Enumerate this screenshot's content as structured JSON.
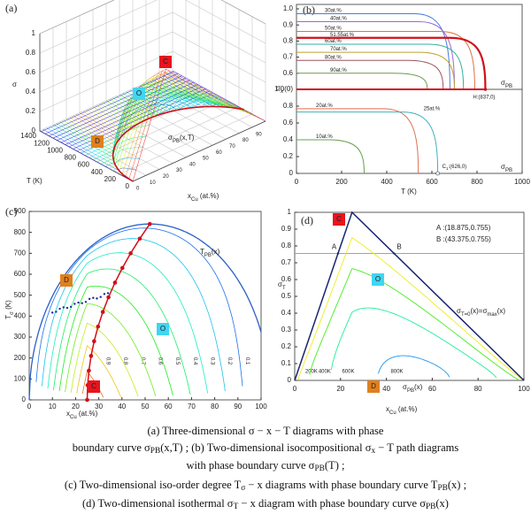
{
  "figure": {
    "panels": [
      {
        "type": "surface3d",
        "label": "(a)",
        "zlabel": "σ",
        "ylabel": "T  (K)",
        "xlabel": [
          "x",
          "Cu",
          "  (at.%)"
        ],
        "zlim": [
          0,
          1
        ],
        "zticks": [
          0,
          0.2,
          0.4,
          0.6,
          0.8,
          1
        ],
        "ylim": [
          0,
          1400
        ],
        "yticks": [
          0,
          200,
          400,
          600,
          800,
          1000,
          1200,
          1400
        ],
        "xlim": [
          0,
          100
        ],
        "xticks": [
          0,
          10,
          20,
          30,
          40,
          50,
          60,
          70,
          80,
          90
        ],
        "curve_label": [
          "σ",
          "PB",
          "(x,T)"
        ],
        "curve_color": "#d0101a",
        "markers": [
          {
            "text": "C",
            "color": "#e8141e"
          },
          {
            "text": "O",
            "color": "#3fd6f2"
          },
          {
            "text": "D",
            "color": "#e0801e"
          }
        ]
      },
      {
        "type": "isocomposition",
        "label": "(b)",
        "xlabel": "T  (K)",
        "ylabel": [
          "σ",
          "x"
        ],
        "xlim": [
          0,
          1000
        ],
        "xticks": [
          0,
          200,
          400,
          600,
          800,
          1000
        ],
        "ylim_upper": [
          0.5,
          1
        ],
        "yticks_upper": [
          {
            "value": 1,
            "label": "1.0"
          },
          0.9,
          0.8,
          0.7,
          0.6
        ],
        "ylim": [
          0,
          1
        ],
        "yticks": [
          0,
          0.2,
          0.4,
          0.6,
          0.8,
          {
            "value": 1,
            "label": "1.0(0)"
          }
        ],
        "curves": [
          {
            "name": "30at.%",
            "color": "#4a7be0",
            "start_sigma": 0.97,
            "end_T": 680,
            "line_width": 1
          },
          {
            "name": "40at.%",
            "color": "#9a6ad0",
            "start_sigma": 0.92,
            "end_T": 700,
            "line_width": 1
          },
          {
            "name": "50at.%",
            "color": "#e07040",
            "start_sigma": 0.86,
            "end_T": 790,
            "line_width": 1
          },
          {
            "name": "51.55at.%",
            "color": "#d0101a",
            "start_sigma": 0.82,
            "end_T": 837,
            "line_width": 2.2
          },
          {
            "name": "60at.%",
            "color": "#30b0a0",
            "start_sigma": 0.78,
            "end_T": 740,
            "line_width": 1
          },
          {
            "name": "70at.%",
            "color": "#c0a030",
            "start_sigma": 0.73,
            "end_T": 700,
            "line_width": 1
          },
          {
            "name": "80at.%",
            "color": "#a05060",
            "start_sigma": 0.68,
            "end_T": 650,
            "line_width": 1
          },
          {
            "name": "90at.%",
            "color": "#6a9a50",
            "start_sigma": 0.6,
            "end_T": 580,
            "line_width": 1
          }
        ],
        "lower_curves": [
          {
            "name": "20at.%",
            "color": "#e07050",
            "start_sigma": 0.77,
            "end_T": 540,
            "line_width": 1
          },
          {
            "name": "25at.%",
            "color": "#40b0c0",
            "start_sigma": 0.73,
            "end_T": 626,
            "line_width": 1
          },
          {
            "name": "10at.%",
            "color": "#6aa050",
            "start_sigma": 0.4,
            "end_T": 300,
            "line_width": 1
          }
        ],
        "point_h": {
          "label": "H:(837,0)",
          "T": 837,
          "color": "#d0101a"
        },
        "point_c1": {
          "label": [
            "C",
            "1",
            ":(626,0)"
          ],
          "T": 626
        },
        "upper_label": [
          "σ",
          "PB"
        ],
        "lower_label": [
          "σ",
          "PB"
        ]
      },
      {
        "type": "isoorder",
        "label": "(c)",
        "xlabel": [
          "x",
          "Cu",
          "  (at.%)"
        ],
        "ylabel": [
          "T",
          "σ",
          "  (K)"
        ],
        "xlim": [
          0,
          100
        ],
        "xticks": [
          0,
          10,
          20,
          30,
          40,
          50,
          60,
          70,
          80,
          90,
          100
        ],
        "ylim": [
          0,
          900
        ],
        "yticks": [
          0,
          100,
          200,
          300,
          400,
          500,
          600,
          700,
          800,
          900
        ],
        "contours": [
          0.9,
          0.8,
          0.7,
          0.6,
          0.5,
          0.4,
          0.3,
          0.2,
          0.1
        ],
        "boundary_label": [
          "T",
          "PB",
          "(x)"
        ],
        "boundary_color": "#2a5fc8",
        "path_color": "#d0101a",
        "dot_color": "#1a2a9a",
        "markers": [
          {
            "text": "D",
            "color": "#e0801e"
          },
          {
            "text": "O",
            "color": "#3fd6f2"
          },
          {
            "text": "C",
            "color": "#e8141e"
          }
        ]
      },
      {
        "type": "isothermal",
        "label": "(d)",
        "xlabel": [
          "x",
          "Cu",
          "  (at.%)"
        ],
        "ylabel": [
          "σ",
          "T"
        ],
        "xlim": [
          0,
          100
        ],
        "xticks": [
          0,
          20,
          40,
          60,
          80,
          100
        ],
        "ylim": [
          0,
          1
        ],
        "yticks": [
          0,
          0.1,
          0.2,
          0.3,
          0.4,
          0.5,
          0.6,
          0.7,
          0.8,
          0.9,
          1
        ],
        "points": [
          {
            "name": "A",
            "x": 18.875,
            "y": 0.755,
            "label": "A :(18.875,0.755)"
          },
          {
            "name": "B",
            "x": 43.375,
            "y": 0.755,
            "label": "B :(43.375,0.755)"
          }
        ],
        "isotherms": [
          {
            "label": "200K",
            "T": 200
          },
          {
            "label": "400K",
            "T": 400
          },
          {
            "label": "600K",
            "T": 600
          },
          {
            "label": "800K",
            "T": 800
          }
        ],
        "max_label": [
          "σ",
          "T=0",
          "(x)=σ",
          "max",
          "(x)"
        ],
        "pb_label": [
          "σ",
          "PB",
          "(x)"
        ],
        "edge_color": "#1a2470",
        "line_color": "#9a9ae8",
        "markers": [
          {
            "text": "C",
            "color": "#e8141e"
          },
          {
            "text": "O",
            "color": "#3fd6f2"
          },
          {
            "text": "D",
            "color": "#e0801e"
          }
        ]
      }
    ],
    "caption": [
      [
        "(a) Three-dimensional  σ − x − T  diagrams with phase"
      ],
      [
        "boundary curve σ",
        "PB",
        "(x,T) ; (b) Two-dimensional isocompositional  σ",
        "x",
        " − T  path diagrams"
      ],
      [
        "with phase boundary curve  σ",
        "PB",
        "(T) ;"
      ],
      [
        "(c) Two-dimensional iso-order degree  T",
        "σ",
        " − x  diagrams with phase boundary curve  T",
        "PB",
        "(x) ;"
      ],
      [
        "(d) Two-dimensional isothermal  σ",
        "T",
        " − x  diagram with phase boundary curve  σ",
        "PB",
        "(x)"
      ]
    ]
  }
}
